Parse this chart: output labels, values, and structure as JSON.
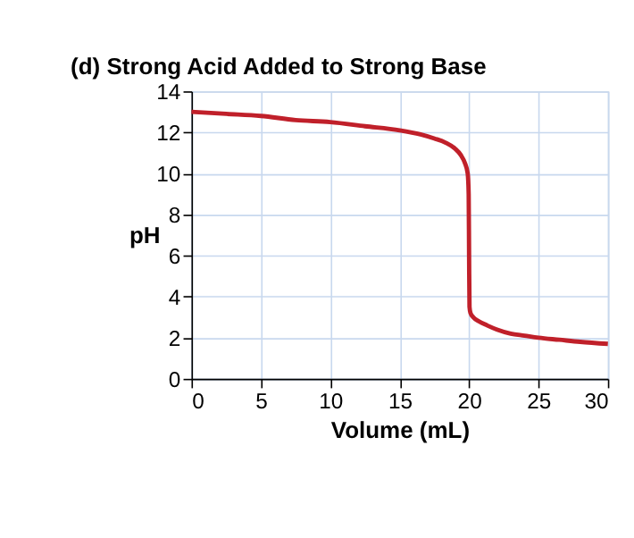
{
  "chart_data": {
    "type": "line",
    "title": "(d)   Strong Acid Added to Strong Base",
    "xlabel": "Volume (mL)",
    "ylabel": "pH",
    "x": [
      0,
      2.5,
      5,
      7.5,
      10,
      12.5,
      15,
      16.5,
      17.5,
      18.3,
      19,
      19.4,
      19.7,
      19.9,
      19.97,
      20,
      20.03,
      20.1,
      20.3,
      20.7,
      21.3,
      22,
      23,
      24,
      25,
      26.5,
      28,
      30
    ],
    "series": [
      {
        "color": "#c0202a",
        "values": [
          13,
          12.9,
          12.8,
          12.6,
          12.5,
          12.3,
          12.1,
          11.9,
          11.7,
          11.5,
          11.2,
          10.9,
          10.5,
          10,
          9,
          6,
          3.5,
          3.2,
          3,
          2.8,
          2.6,
          2.4,
          2.2,
          2.1,
          2,
          1.9,
          1.8,
          1.7
        ]
      }
    ],
    "xlim": [
      0,
      30
    ],
    "xticks": [
      0,
      5,
      10,
      15,
      20,
      25,
      30
    ],
    "ylim": [
      0,
      14
    ],
    "yticks": [
      0,
      2,
      4,
      6,
      8,
      10,
      12,
      14
    ],
    "grid": true,
    "marker": "none",
    "line_style": "solid"
  }
}
